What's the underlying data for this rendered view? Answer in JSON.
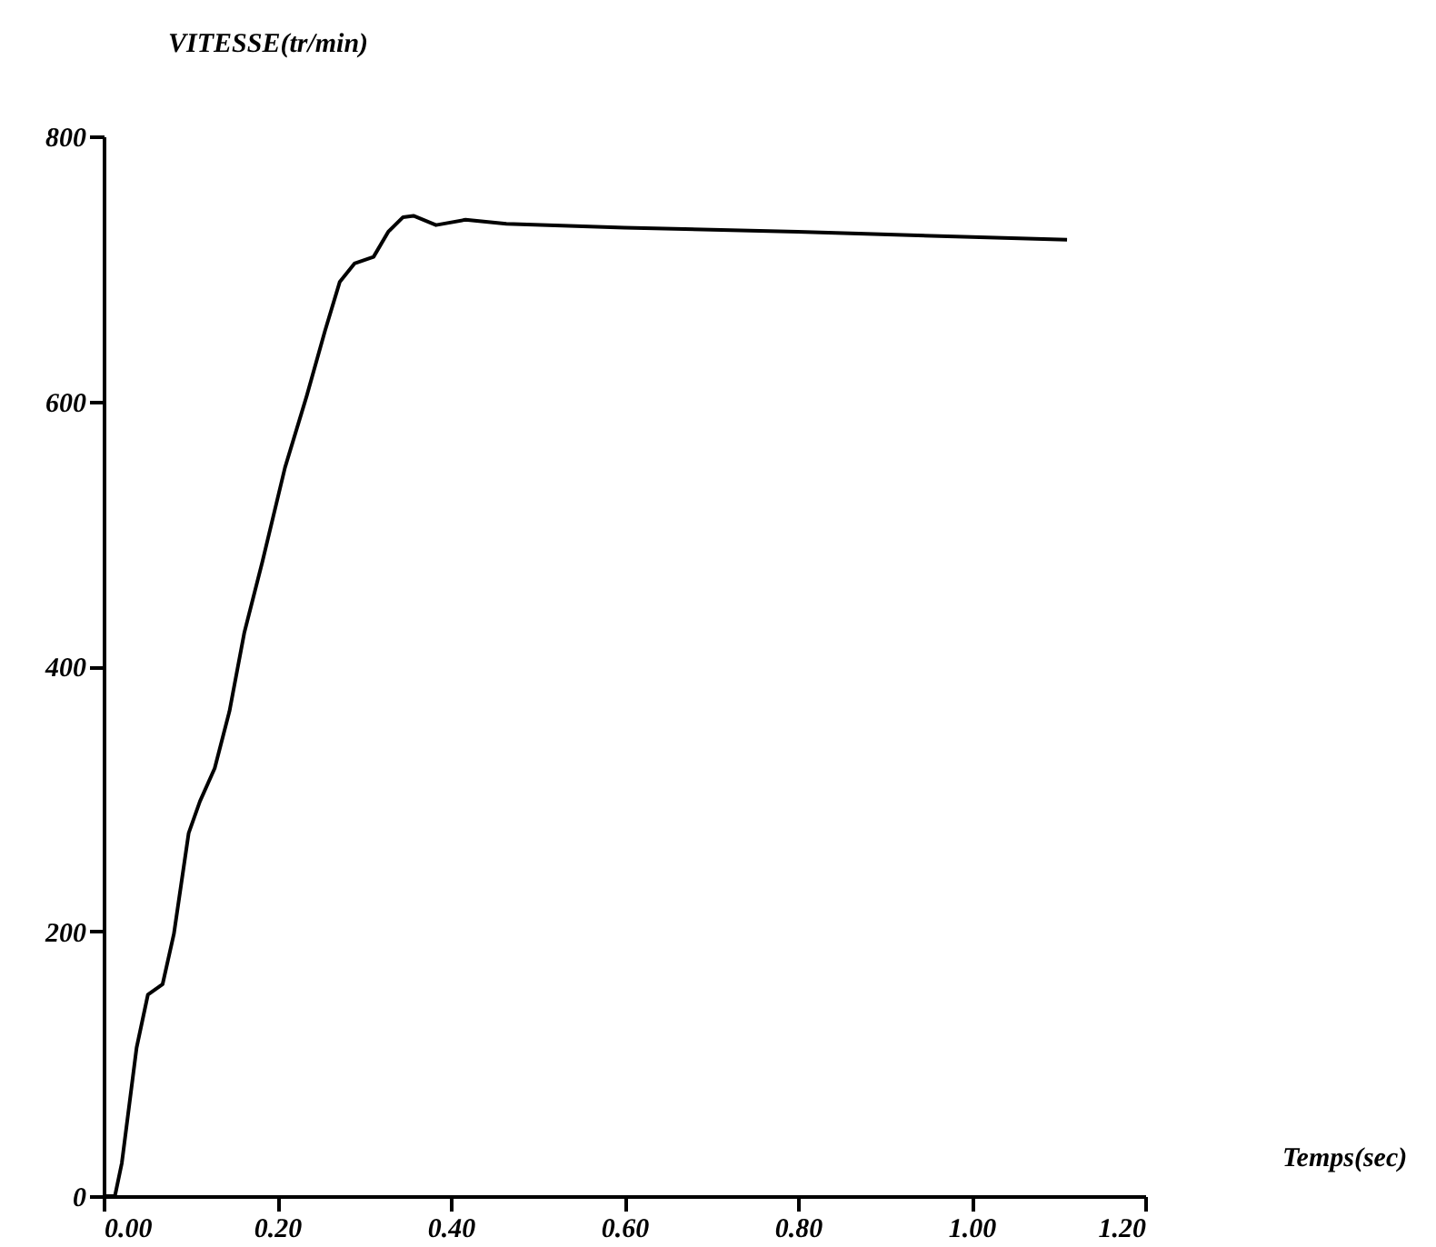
{
  "chart_data": {
    "type": "line",
    "xlabel": "Temps(sec)",
    "ylabel": "VITESSE(tr/min)",
    "xlim": [
      0,
      1.2
    ],
    "xticks": [
      {
        "value": 0,
        "label": "0.00"
      },
      {
        "value": 0.2,
        "label": "0.20"
      },
      {
        "value": 0.4,
        "label": "0.40"
      },
      {
        "value": 0.6,
        "label": "0.60"
      },
      {
        "value": 0.8,
        "label": "0.80"
      },
      {
        "value": 1.0,
        "label": "1.00"
      },
      {
        "value": 1.2,
        "label": "1.20"
      }
    ],
    "ylim": [
      0,
      800
    ],
    "yticks": [
      0,
      200,
      400,
      600,
      800
    ],
    "grid": false,
    "marker": "none",
    "line_style": "solid",
    "series": [
      {
        "color": "#000000",
        "x": [
          0,
          0.013,
          0.021,
          0.038,
          0.051,
          0.068,
          0.081,
          0.098,
          0.111,
          0.128,
          0.145,
          0.162,
          0.183,
          0.209,
          0.234,
          0.255,
          0.272,
          0.289,
          0.311,
          0.328,
          0.345,
          0.357,
          0.383,
          0.417,
          0.464,
          0.6,
          0.8,
          1.0,
          1.11
        ],
        "values": [
          0,
          0,
          25,
          112,
          152,
          160,
          198,
          274,
          298,
          323,
          366,
          425,
          479,
          550,
          604,
          653,
          690,
          704,
          709,
          728,
          739,
          740,
          733,
          737,
          734,
          731,
          728,
          724,
          722
        ]
      }
    ]
  }
}
